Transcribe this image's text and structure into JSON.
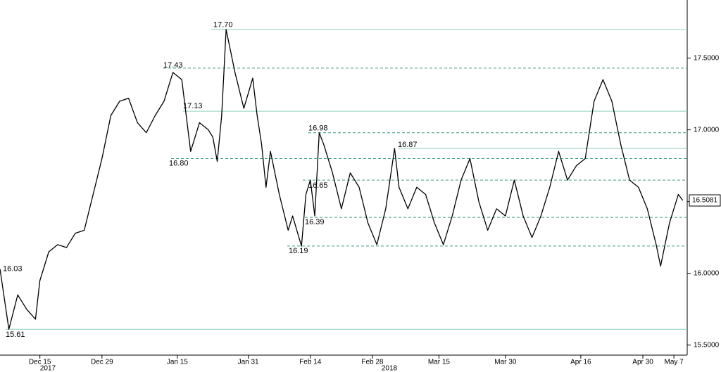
{
  "chart_data": {
    "type": "line",
    "x": [
      "2017-12-06",
      "2017-12-08",
      "2017-12-10",
      "2017-12-12",
      "2017-12-14",
      "2017-12-15",
      "2017-12-17",
      "2017-12-19",
      "2017-12-21",
      "2017-12-23",
      "2017-12-25",
      "2017-12-27",
      "2017-12-29",
      "2017-12-31",
      "2018-01-02",
      "2018-01-04",
      "2018-01-06",
      "2018-01-08",
      "2018-01-10",
      "2018-01-12",
      "2018-01-14",
      "2018-01-16",
      "2018-01-17",
      "2018-01-18",
      "2018-01-20",
      "2018-01-22",
      "2018-01-23",
      "2018-01-24",
      "2018-01-25",
      "2018-01-26",
      "2018-01-28",
      "2018-01-30",
      "2018-02-01",
      "2018-02-02",
      "2018-02-03",
      "2018-02-04",
      "2018-02-05",
      "2018-02-07",
      "2018-02-09",
      "2018-02-10",
      "2018-02-12",
      "2018-02-13",
      "2018-02-14",
      "2018-02-15",
      "2018-02-16",
      "2018-02-17",
      "2018-02-19",
      "2018-02-21",
      "2018-02-23",
      "2018-02-25",
      "2018-02-27",
      "2018-03-01",
      "2018-03-03",
      "2018-03-05",
      "2018-03-06",
      "2018-03-08",
      "2018-03-10",
      "2018-03-12",
      "2018-03-14",
      "2018-03-16",
      "2018-03-18",
      "2018-03-20",
      "2018-03-22",
      "2018-03-24",
      "2018-03-26",
      "2018-03-28",
      "2018-03-30",
      "2018-04-01",
      "2018-04-03",
      "2018-04-05",
      "2018-04-07",
      "2018-04-09",
      "2018-04-11",
      "2018-04-13",
      "2018-04-15",
      "2018-04-17",
      "2018-04-19",
      "2018-04-21",
      "2018-04-23",
      "2018-04-25",
      "2018-04-27",
      "2018-04-29",
      "2018-05-01",
      "2018-05-03",
      "2018-05-04",
      "2018-05-06",
      "2018-05-08",
      "2018-05-09"
    ],
    "series": [
      {
        "color": "#000000",
        "values": [
          16.03,
          15.61,
          15.85,
          15.75,
          15.68,
          15.95,
          16.15,
          16.2,
          16.18,
          16.28,
          16.3,
          16.55,
          16.8,
          17.1,
          17.2,
          17.22,
          17.05,
          16.98,
          17.1,
          17.2,
          17.4,
          17.35,
          17.1,
          16.85,
          17.05,
          17.0,
          16.95,
          16.78,
          17.1,
          17.7,
          17.4,
          17.15,
          17.36,
          17.1,
          16.9,
          16.6,
          16.85,
          16.55,
          16.3,
          16.4,
          16.19,
          16.55,
          16.65,
          16.4,
          16.98,
          16.9,
          16.7,
          16.45,
          16.7,
          16.6,
          16.35,
          16.2,
          16.45,
          16.87,
          16.6,
          16.45,
          16.6,
          16.55,
          16.35,
          16.2,
          16.4,
          16.65,
          16.8,
          16.5,
          16.3,
          16.45,
          16.4,
          16.65,
          16.4,
          16.25,
          16.4,
          16.6,
          16.85,
          16.65,
          16.75,
          16.8,
          17.2,
          17.35,
          17.2,
          16.9,
          16.65,
          16.6,
          16.45,
          16.2,
          16.05,
          16.35,
          16.55,
          16.5081
        ]
      }
    ],
    "xlim": [
      "2017-12-06",
      "2018-05-10"
    ],
    "xticks": [
      {
        "value": "2017-12-15",
        "label": "Dec 15"
      },
      {
        "value": "2017-12-29",
        "label": "Dec 29"
      },
      {
        "value": "2018-01-15",
        "label": "Jan 15"
      },
      {
        "value": "2018-01-31",
        "label": "Jan 31"
      },
      {
        "value": "2018-02-14",
        "label": "Feb 14"
      },
      {
        "value": "2018-02-28",
        "label": "Feb 28"
      },
      {
        "value": "2018-03-15",
        "label": "Mar 15"
      },
      {
        "value": "2018-03-30",
        "label": "Mar 30"
      },
      {
        "value": "2018-04-16",
        "label": "Apr 16"
      },
      {
        "value": "2018-04-30",
        "label": "Apr 30"
      },
      {
        "value": "2018-05-07",
        "label": "May 7"
      }
    ],
    "year_labels": [
      "2017",
      "2018"
    ],
    "ylim": [
      15.43,
      17.905
    ],
    "yticks": [
      {
        "value": 15.5,
        "label": "15.5000"
      },
      {
        "value": 16,
        "label": "16.0000"
      },
      {
        "value": 16.5,
        "label": "16.5000"
      },
      {
        "value": 17,
        "label": "17.0000"
      },
      {
        "value": 17.5,
        "label": "17.5000"
      }
    ],
    "levels": [
      {
        "value": 17.7,
        "label": "17.70",
        "style": "solid"
      },
      {
        "value": 17.43,
        "label": "17.43",
        "style": "dashed"
      },
      {
        "value": 17.13,
        "label": "17.13",
        "style": "solid"
      },
      {
        "value": 16.98,
        "label": "16.98",
        "style": "dashed"
      },
      {
        "value": 16.87,
        "label": "16.87",
        "style": "solid"
      },
      {
        "value": 16.8,
        "label": "16.80",
        "style": "dashed"
      },
      {
        "value": 16.65,
        "label": "16.65",
        "style": "dashed"
      },
      {
        "value": 16.39,
        "label": "16.39",
        "style": "dashed"
      },
      {
        "value": 16.19,
        "label": "16.19",
        "style": "dashed"
      },
      {
        "value": 15.61,
        "label": "15.61",
        "style": "solid"
      }
    ],
    "annotations": [
      {
        "value": 16.03,
        "label": "16.03"
      }
    ]
  }
}
